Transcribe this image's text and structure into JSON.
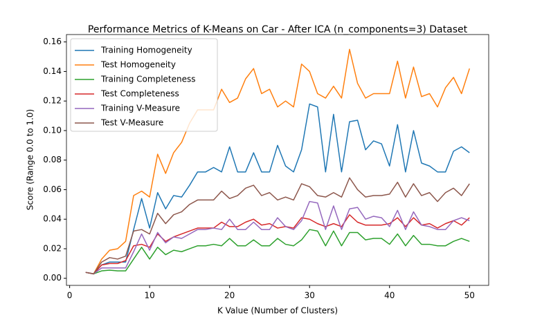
{
  "chart_data": {
    "type": "line",
    "title": "Performance Metrics of K-Means on Car - After ICA (n_components=3) Dataset",
    "x_label": "K Value (Number of Clusters)",
    "y_label": "Score (Range 0.0 to 1.0)",
    "x": [
      2,
      3,
      4,
      5,
      6,
      7,
      8,
      9,
      10,
      11,
      12,
      13,
      14,
      15,
      16,
      17,
      18,
      19,
      20,
      21,
      22,
      23,
      24,
      25,
      26,
      27,
      28,
      29,
      30,
      31,
      32,
      33,
      34,
      35,
      36,
      37,
      38,
      39,
      40,
      41,
      42,
      43,
      44,
      45,
      46,
      47,
      48,
      49,
      50
    ],
    "series": [
      {
        "name": "Training Homogeneity",
        "color": "#1f77b4",
        "values": [
          0.004,
          0.003,
          0.009,
          0.011,
          0.011,
          0.011,
          0.033,
          0.054,
          0.034,
          0.058,
          0.047,
          0.056,
          0.055,
          0.063,
          0.072,
          0.072,
          0.075,
          0.072,
          0.089,
          0.072,
          0.072,
          0.085,
          0.072,
          0.072,
          0.09,
          0.076,
          0.072,
          0.087,
          0.118,
          0.116,
          0.072,
          0.111,
          0.072,
          0.106,
          0.107,
          0.087,
          0.093,
          0.091,
          0.076,
          0.104,
          0.072,
          0.1,
          0.078,
          0.076,
          0.072,
          0.072,
          0.086,
          0.089,
          0.085
        ]
      },
      {
        "name": "Test Homogeneity",
        "color": "#ff7f0e",
        "values": [
          0.004,
          0.003,
          0.013,
          0.019,
          0.02,
          0.025,
          0.056,
          0.059,
          0.055,
          0.084,
          0.071,
          0.085,
          0.092,
          0.105,
          0.114,
          0.114,
          0.114,
          0.128,
          0.119,
          0.122,
          0.135,
          0.142,
          0.125,
          0.128,
          0.116,
          0.12,
          0.116,
          0.145,
          0.14,
          0.125,
          0.122,
          0.13,
          0.122,
          0.155,
          0.132,
          0.122,
          0.125,
          0.125,
          0.125,
          0.147,
          0.122,
          0.143,
          0.123,
          0.125,
          0.116,
          0.129,
          0.136,
          0.125,
          0.142
        ]
      },
      {
        "name": "Training Completeness",
        "color": "#2ca02c",
        "values": [
          0.004,
          0.003,
          0.005,
          0.0055,
          0.005,
          0.005,
          0.013,
          0.021,
          0.013,
          0.021,
          0.016,
          0.019,
          0.018,
          0.02,
          0.022,
          0.022,
          0.023,
          0.022,
          0.027,
          0.022,
          0.022,
          0.026,
          0.022,
          0.022,
          0.027,
          0.023,
          0.022,
          0.026,
          0.033,
          0.032,
          0.022,
          0.032,
          0.022,
          0.031,
          0.031,
          0.026,
          0.027,
          0.027,
          0.023,
          0.03,
          0.022,
          0.029,
          0.023,
          0.023,
          0.022,
          0.022,
          0.025,
          0.027,
          0.025
        ]
      },
      {
        "name": "Test Completeness",
        "color": "#d62728",
        "values": [
          0.004,
          0.003,
          0.009,
          0.01,
          0.01,
          0.012,
          0.022,
          0.023,
          0.021,
          0.03,
          0.025,
          0.028,
          0.03,
          0.032,
          0.034,
          0.034,
          0.034,
          0.038,
          0.035,
          0.035,
          0.038,
          0.04,
          0.036,
          0.037,
          0.034,
          0.035,
          0.034,
          0.041,
          0.04,
          0.037,
          0.035,
          0.037,
          0.035,
          0.043,
          0.038,
          0.036,
          0.036,
          0.036,
          0.037,
          0.041,
          0.035,
          0.041,
          0.036,
          0.037,
          0.034,
          0.037,
          0.039,
          0.036,
          0.041
        ]
      },
      {
        "name": "Training V-Measure",
        "color": "#9467bd",
        "values": [
          0.004,
          0.003,
          0.007,
          0.007,
          0.007,
          0.007,
          0.018,
          0.03,
          0.019,
          0.031,
          0.024,
          0.028,
          0.027,
          0.03,
          0.033,
          0.033,
          0.034,
          0.033,
          0.04,
          0.033,
          0.033,
          0.038,
          0.033,
          0.033,
          0.041,
          0.035,
          0.033,
          0.039,
          0.052,
          0.051,
          0.033,
          0.049,
          0.033,
          0.047,
          0.048,
          0.04,
          0.042,
          0.041,
          0.035,
          0.046,
          0.033,
          0.045,
          0.036,
          0.035,
          0.033,
          0.033,
          0.039,
          0.041,
          0.039
        ]
      },
      {
        "name": "Test V-Measure",
        "color": "#8c564b",
        "values": [
          0.004,
          0.003,
          0.011,
          0.014,
          0.013,
          0.015,
          0.032,
          0.033,
          0.03,
          0.044,
          0.037,
          0.043,
          0.045,
          0.05,
          0.053,
          0.053,
          0.053,
          0.059,
          0.054,
          0.056,
          0.061,
          0.063,
          0.056,
          0.058,
          0.053,
          0.055,
          0.053,
          0.064,
          0.062,
          0.056,
          0.055,
          0.058,
          0.055,
          0.068,
          0.06,
          0.055,
          0.056,
          0.056,
          0.057,
          0.065,
          0.055,
          0.064,
          0.056,
          0.058,
          0.052,
          0.058,
          0.061,
          0.056,
          0.064
        ]
      }
    ],
    "xlim": [
      -0.4,
      52.4
    ],
    "ylim": [
      -0.0048,
      0.165
    ],
    "xticks": [
      0,
      10,
      20,
      30,
      40,
      50
    ],
    "yticks": [
      {
        "value": 0,
        "label": "0.00"
      },
      {
        "value": 0.02,
        "label": "0.02"
      },
      {
        "value": 0.04,
        "label": "0.04"
      },
      {
        "value": 0.06,
        "label": "0.06"
      },
      {
        "value": 0.08,
        "label": "0.08"
      },
      {
        "value": 0.1,
        "label": "0.10"
      },
      {
        "value": 0.12,
        "label": "0.12"
      },
      {
        "value": 0.14,
        "label": "0.14"
      },
      {
        "value": 0.16,
        "label": "0.16"
      }
    ],
    "legend": "upper left",
    "grid": false
  }
}
